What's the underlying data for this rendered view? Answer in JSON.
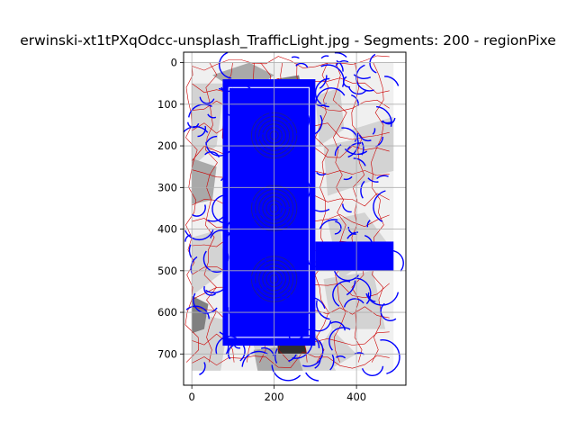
{
  "chart_data": {
    "type": "image",
    "title": "erwinski-xt1tPXqOdcc-unsplash_TrafficLight.jpg - Segments: 200 - regionPixe",
    "xlabel": "",
    "ylabel": "",
    "xlim": [
      -20,
      520
    ],
    "ylim": [
      775,
      -25
    ],
    "image_extent": [
      0,
      490,
      740,
      0
    ],
    "x_ticks": [
      0,
      200,
      400
    ],
    "y_ticks": [
      0,
      100,
      200,
      300,
      400,
      500,
      600,
      700
    ],
    "grid": true,
    "colors": {
      "background": "#f0f0f0",
      "segment_light": "#d3d3d3",
      "segment_mid": "#a9a9a9",
      "segment_dark": "#808080",
      "segment_darkest": "#2f2f2f",
      "boundary": "#cc0000",
      "overlay": "#0000ff",
      "grid": "#b0b0b0"
    },
    "overlay_description": "region pixels overlaid in blue"
  }
}
